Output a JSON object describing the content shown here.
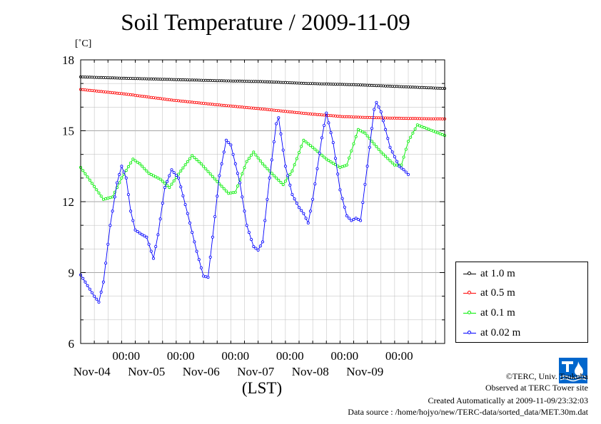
{
  "chart_data": {
    "type": "line",
    "title": "Soil Temperature / 2009-11-09",
    "unit_label": "[˚C]",
    "xlabel": "(LST)",
    "ylabel": "",
    "ylim": [
      6,
      18
    ],
    "yticks": [
      6,
      9,
      12,
      15,
      18
    ],
    "grid": true,
    "legend_position": "right",
    "x_major_ticks": [
      {
        "time": "00:00",
        "date": "Nov-04"
      },
      {
        "time": "00:00",
        "date": "Nov-05"
      },
      {
        "time": "00:00",
        "date": "Nov-06"
      },
      {
        "time": "00:00",
        "date": "Nov-07"
      },
      {
        "time": "00:00",
        "date": "Nov-08"
      },
      {
        "time": "00:00",
        "date": "Nov-09"
      }
    ],
    "xlim_hours": [
      -20,
      140
    ],
    "x_unit": "hours from Nov-04 00:00 (LST)",
    "series": [
      {
        "name": "at 1.0 m",
        "color": "#000000",
        "points": [
          [
            -20,
            17.28
          ],
          [
            0,
            17.22
          ],
          [
            20,
            17.17
          ],
          [
            40,
            17.12
          ],
          [
            60,
            17.08
          ],
          [
            80,
            17.0
          ],
          [
            100,
            16.95
          ],
          [
            120,
            16.87
          ],
          [
            140,
            16.79
          ]
        ]
      },
      {
        "name": "at 0.5 m",
        "color": "#ff0000",
        "points": [
          [
            -20,
            16.75
          ],
          [
            0,
            16.55
          ],
          [
            20,
            16.3
          ],
          [
            40,
            16.1
          ],
          [
            60,
            15.92
          ],
          [
            80,
            15.72
          ],
          [
            95,
            15.6
          ],
          [
            110,
            15.55
          ],
          [
            125,
            15.52
          ],
          [
            140,
            15.5
          ]
        ]
      },
      {
        "name": "at 0.1 m",
        "color": "#00ee00",
        "points": [
          [
            -20,
            13.45
          ],
          [
            -10,
            12.1
          ],
          [
            -6,
            12.2
          ],
          [
            -2,
            13.0
          ],
          [
            3,
            13.8
          ],
          [
            6,
            13.6
          ],
          [
            10,
            13.2
          ],
          [
            15,
            12.95
          ],
          [
            19,
            12.6
          ],
          [
            24,
            13.3
          ],
          [
            29,
            13.95
          ],
          [
            33,
            13.6
          ],
          [
            40,
            12.85
          ],
          [
            45,
            12.35
          ],
          [
            48,
            12.4
          ],
          [
            53,
            13.7
          ],
          [
            56,
            14.1
          ],
          [
            60,
            13.6
          ],
          [
            66,
            13.0
          ],
          [
            69,
            12.72
          ],
          [
            73,
            13.3
          ],
          [
            78,
            14.6
          ],
          [
            82,
            14.3
          ],
          [
            88,
            13.8
          ],
          [
            94,
            13.45
          ],
          [
            97,
            13.55
          ],
          [
            102,
            15.05
          ],
          [
            105,
            14.9
          ],
          [
            112,
            14.1
          ],
          [
            118,
            13.55
          ],
          [
            121,
            13.55
          ],
          [
            124,
            14.55
          ],
          [
            128,
            15.25
          ],
          [
            132,
            15.1
          ],
          [
            140,
            14.8
          ]
        ]
      },
      {
        "name": "at 0.02 m",
        "color": "#0000ff",
        "points": [
          [
            -20,
            8.9
          ],
          [
            -14,
            8.0
          ],
          [
            -12,
            7.75
          ],
          [
            -10,
            8.6
          ],
          [
            -7,
            11.0
          ],
          [
            -4,
            12.8
          ],
          [
            -2,
            13.5
          ],
          [
            0,
            13.0
          ],
          [
            2,
            11.6
          ],
          [
            4,
            10.8
          ],
          [
            7,
            10.6
          ],
          [
            9,
            10.5
          ],
          [
            11,
            9.9
          ],
          [
            12,
            9.6
          ],
          [
            14,
            10.6
          ],
          [
            17,
            12.6
          ],
          [
            20,
            13.35
          ],
          [
            23,
            13.0
          ],
          [
            27,
            11.5
          ],
          [
            31,
            9.9
          ],
          [
            34,
            8.85
          ],
          [
            36,
            8.8
          ],
          [
            38,
            10.5
          ],
          [
            41,
            13.1
          ],
          [
            44,
            14.6
          ],
          [
            46,
            14.4
          ],
          [
            50,
            12.8
          ],
          [
            53,
            11.0
          ],
          [
            56,
            10.1
          ],
          [
            58,
            9.95
          ],
          [
            60,
            10.3
          ],
          [
            63,
            13.0
          ],
          [
            66,
            15.3
          ],
          [
            67,
            15.55
          ],
          [
            70,
            13.5
          ],
          [
            73,
            12.3
          ],
          [
            76,
            11.75
          ],
          [
            78,
            11.5
          ],
          [
            80,
            11.1
          ],
          [
            82,
            12.1
          ],
          [
            86,
            14.7
          ],
          [
            88,
            15.75
          ],
          [
            91,
            14.5
          ],
          [
            94,
            12.5
          ],
          [
            97,
            11.4
          ],
          [
            99,
            11.2
          ],
          [
            101,
            11.3
          ],
          [
            103,
            11.2
          ],
          [
            106,
            13.5
          ],
          [
            109,
            15.9
          ],
          [
            110,
            16.2
          ],
          [
            112,
            15.8
          ],
          [
            116,
            14.3
          ],
          [
            120,
            13.5
          ],
          [
            122,
            13.35
          ],
          [
            124,
            13.15
          ]
        ]
      }
    ]
  },
  "footer": {
    "copyright": "©TERC, Univ. Tsukuba",
    "observed": "Observed at TERC Tower site",
    "created": "Created Automatically at 2009-11-09/23:32:03",
    "source": "Data source : /home/hojyo/new/TERC-data/sorted_data/MET.30m.dat"
  },
  "logo": {
    "text": "TERC",
    "color": "#0066cc"
  }
}
